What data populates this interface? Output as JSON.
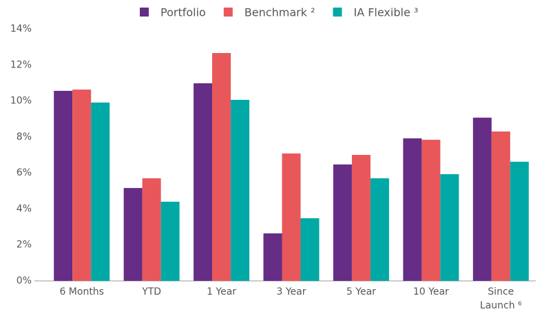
{
  "chart_data": {
    "type": "bar",
    "categories": [
      "6 Months",
      "YTD",
      "1 Year",
      "3 Year",
      "5 Year",
      "10 Year",
      "Since\nLaunch ⁶"
    ],
    "series": [
      {
        "name": "Portfolio",
        "color": "#652d86",
        "values": [
          10.56,
          5.16,
          10.98,
          2.64,
          6.47,
          7.92,
          9.07
        ]
      },
      {
        "name": "Benchmark ²",
        "color": "#e8575a",
        "values": [
          10.63,
          5.7,
          12.66,
          7.08,
          7.0,
          7.84,
          8.3
        ]
      },
      {
        "name": "IA Flexible ³",
        "color": "#00a9a5",
        "values": [
          9.91,
          4.4,
          10.06,
          3.48,
          5.7,
          5.93,
          6.62
        ]
      }
    ],
    "ylim": [
      0,
      14
    ],
    "yticks": [
      {
        "value": 0,
        "label": "0%"
      },
      {
        "value": 2,
        "label": "2%"
      },
      {
        "value": 4,
        "label": "4%"
      },
      {
        "value": 6,
        "label": "6%"
      },
      {
        "value": 8,
        "label": "8%"
      },
      {
        "value": 10,
        "label": "10%"
      },
      {
        "value": 12,
        "label": "12%"
      },
      {
        "value": 14,
        "label": "14%"
      }
    ],
    "grid": false,
    "legend": "top"
  }
}
